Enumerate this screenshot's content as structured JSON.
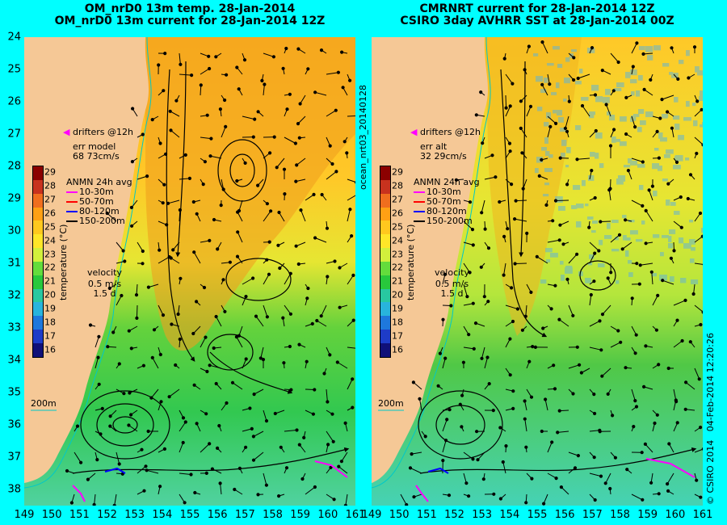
{
  "left_title": {
    "line1": "OM_nrD0 13m temp. 28-Jan-2014",
    "line2": "OM_nrD0 13m current for 28-Jan-2014 12Z"
  },
  "right_title": {
    "line1": "CMRNRT current for 28-Jan-2014 12Z",
    "line2": "CSIRO 3day AVHRR SST at 28-Jan-2014 00Z"
  },
  "lat_labels": [
    "24",
    "25",
    "26",
    "27",
    "28",
    "29",
    "30",
    "31",
    "32",
    "33",
    "34",
    "35",
    "36",
    "37",
    "38"
  ],
  "lon_labels": [
    "149",
    "150",
    "151",
    "152",
    "153",
    "154",
    "155",
    "156",
    "157",
    "158",
    "159",
    "160",
    "161"
  ],
  "colorbar": {
    "labels": [
      "29",
      "28",
      "27",
      "26",
      "25",
      "24",
      "23",
      "22",
      "21",
      "20",
      "19",
      "18",
      "17",
      "16"
    ],
    "axis_label": "temperature (°C)",
    "colors": [
      "#8b0000",
      "#c8321e",
      "#f06e1e",
      "#ffa014",
      "#ffc81e",
      "#ffe628",
      "#d2f03c",
      "#64dc3c",
      "#28c83c",
      "#28c8a0",
      "#28b4dc",
      "#1e78dc",
      "#1e3cc8",
      "#101078"
    ]
  },
  "left_legend": {
    "drifters": "drifters @12h",
    "err_label": "err model",
    "err_value": "68 73cm/s",
    "anmn_title": "ANMN 24h avg",
    "depth1": "10-30m",
    "depth2": "50-70m",
    "depth3": "80-120m",
    "depth4": "150-200m",
    "velocity_label": "velocity",
    "velocity_speed": "0.5 m/s",
    "velocity_time": "1.5 d",
    "contour_label": "200m"
  },
  "right_legend": {
    "drifters": "drifters @12h",
    "err_label": "err alt",
    "err_value": "32 29cm/s",
    "anmn_title": "ANMN 24h avg",
    "depth1": "10-30m",
    "depth2": "50-70m",
    "depth3": "80-120m",
    "depth4": "150-200m",
    "velocity_label": "velocity",
    "velocity_speed": "0.5 m/s",
    "velocity_time": "1.5 d",
    "contour_label": "200m"
  },
  "depth_colors": [
    "#ff00ff",
    "#ff0000",
    "#0000ff",
    "#000000"
  ],
  "colors": {
    "background": "#00ffff",
    "land": "#f5c896",
    "warm_core": "#f0a01e",
    "cool_water": "#32c850"
  },
  "vertical_text": {
    "file_id": "ocean_nrt03_20140128",
    "credit": "© CSIRO 2014",
    "timestamp": "04-Feb-2014 12:20:26"
  }
}
